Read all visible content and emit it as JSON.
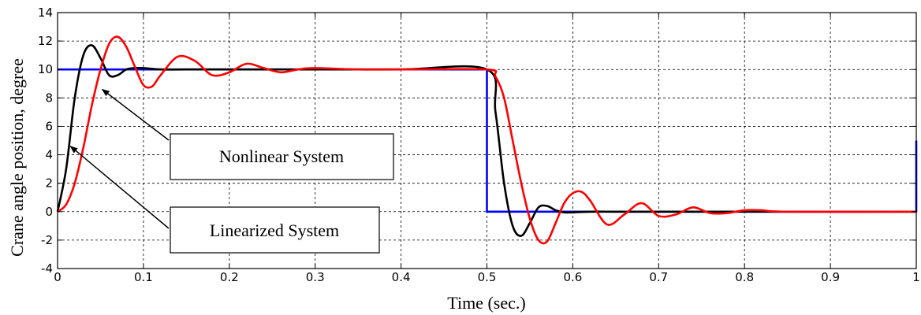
{
  "chart_data": {
    "type": "line",
    "xlabel": "Time  (sec.)",
    "ylabel": "Crane angle position, degree",
    "xlim": [
      0,
      1
    ],
    "ylim": [
      -4,
      14
    ],
    "xticks": [
      0,
      0.1,
      0.2,
      0.3,
      0.4,
      0.5,
      0.6,
      0.7,
      0.8,
      0.9,
      1
    ],
    "xtick_labels": [
      "0",
      "0.1",
      "0.2",
      "0.3",
      "0.4",
      "0.5",
      "0.6",
      "0.7",
      "0.8",
      "0.9",
      "1"
    ],
    "yticks": [
      -4,
      -2,
      0,
      2,
      4,
      6,
      8,
      10,
      12,
      14
    ],
    "ytick_labels": [
      "-4",
      "-2",
      "0",
      "2",
      "4",
      "6",
      "8",
      "10",
      "12",
      "14"
    ],
    "grid": true,
    "annotations": [
      {
        "text": "Nonlinear System",
        "points_to": {
          "x": 0.052,
          "y": 8.6
        }
      },
      {
        "text": "Linearized System",
        "points_to": {
          "x": 0.015,
          "y": 4.6
        }
      }
    ],
    "series": [
      {
        "color": "#0000ff",
        "x": [
          0,
          0.5,
          0.5,
          1,
          1
        ],
        "y": [
          10,
          10,
          0,
          0,
          5
        ]
      },
      {
        "color": "#000000",
        "x": [
          0,
          0.01,
          0.02,
          0.03,
          0.04,
          0.05,
          0.06,
          0.07,
          0.08,
          0.09,
          0.1,
          0.12,
          0.15,
          0.2,
          0.3,
          0.4,
          0.5,
          0.51,
          0.52,
          0.53,
          0.54,
          0.55,
          0.56,
          0.57,
          0.58,
          0.59,
          0.6,
          0.62,
          0.65,
          0.7,
          0.8,
          1.0
        ],
        "y": [
          0,
          3.0,
          8.0,
          11.0,
          11.7,
          10.8,
          9.6,
          9.6,
          10.0,
          10.1,
          10.1,
          10.0,
          10.0,
          10.0,
          10.0,
          10.0,
          10.0,
          7.0,
          2.0,
          -1.0,
          -1.7,
          -0.8,
          0.3,
          0.4,
          0.1,
          -0.05,
          -0.05,
          0.0,
          0.0,
          0.0,
          0.0,
          0.0
        ]
      },
      {
        "color": "#ff0000",
        "x": [
          0,
          0.01,
          0.02,
          0.03,
          0.04,
          0.05,
          0.06,
          0.07,
          0.08,
          0.09,
          0.1,
          0.11,
          0.12,
          0.14,
          0.16,
          0.18,
          0.2,
          0.22,
          0.24,
          0.26,
          0.28,
          0.3,
          0.35,
          0.4,
          0.5,
          0.51,
          0.52,
          0.53,
          0.54,
          0.55,
          0.56,
          0.57,
          0.58,
          0.59,
          0.6,
          0.61,
          0.62,
          0.64,
          0.66,
          0.68,
          0.7,
          0.72,
          0.74,
          0.76,
          0.78,
          0.8,
          0.82,
          0.85,
          1.0
        ],
        "y": [
          0,
          0.5,
          2.0,
          4.5,
          7.5,
          10.0,
          11.8,
          12.3,
          11.6,
          10.2,
          8.9,
          8.8,
          9.6,
          10.9,
          10.6,
          9.6,
          9.8,
          10.4,
          10.1,
          9.8,
          10.0,
          10.1,
          10.0,
          10.0,
          10.0,
          9.5,
          8.0,
          5.0,
          2.0,
          -0.5,
          -2.0,
          -2.1,
          -0.8,
          0.6,
          1.3,
          1.4,
          0.8,
          -0.9,
          -0.2,
          0.6,
          -0.3,
          -0.2,
          0.3,
          -0.1,
          -0.1,
          0.1,
          0.1,
          0.0,
          0.0
        ]
      }
    ]
  }
}
